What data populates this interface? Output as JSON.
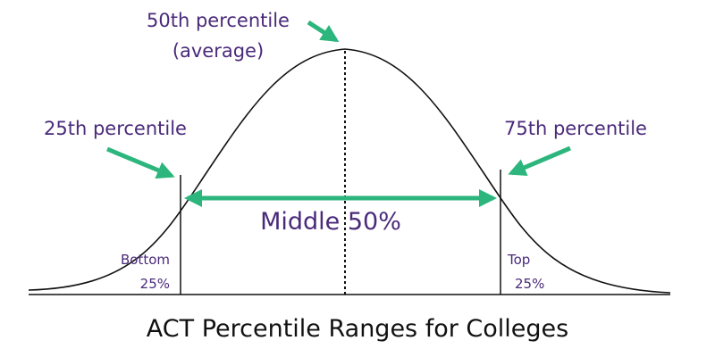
{
  "labels": {
    "p50_line1": "50th percentile",
    "p50_line2": "(average)",
    "p25": "25th percentile",
    "p75": "75th percentile",
    "middle": "Middle 50%",
    "bottom_line1": "Bottom",
    "bottom_line2": "25%",
    "top_line1": "Top",
    "top_line2": "25%",
    "title": "ACT Percentile Ranges for Colleges"
  },
  "colors": {
    "arrow": "#2cb67d",
    "label": "#4a2a7a",
    "curve": "#111111",
    "title": "#111111"
  }
}
